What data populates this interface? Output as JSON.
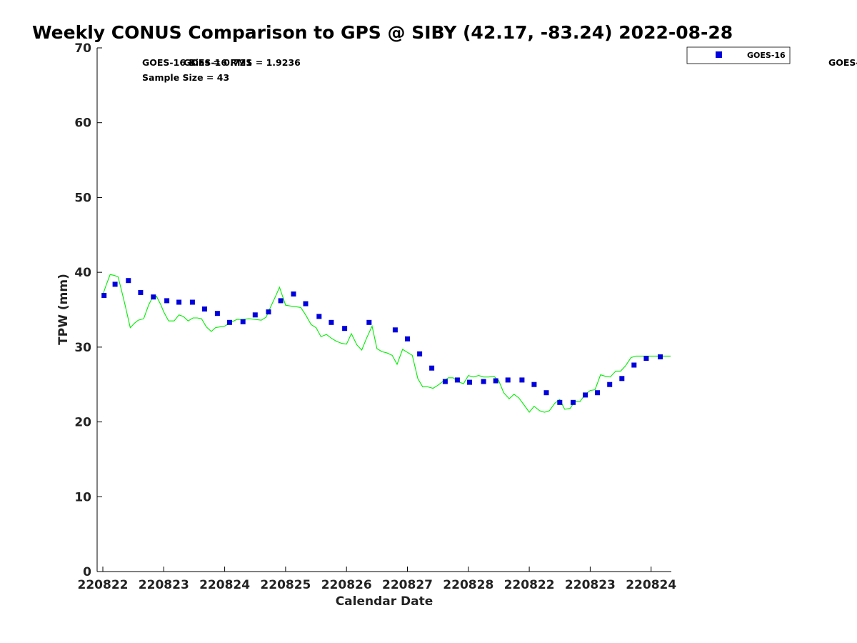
{
  "chart_data": {
    "type": "scatter",
    "title": "Weekly CONUS Comparison to GPS @ SIBY (42.17, -83.24) 2022-08-28",
    "xlabel": "Calendar Date",
    "ylabel": "TPW (mm)",
    "ylim": [
      0,
      70
    ],
    "yticks": [
      0,
      10,
      20,
      30,
      40,
      50,
      60,
      70
    ],
    "xlim": [
      0,
      9.3
    ],
    "xticks": [
      {
        "pos": 0,
        "label": "220822"
      },
      {
        "pos": 1,
        "label": "220823"
      },
      {
        "pos": 2,
        "label": "220824"
      },
      {
        "pos": 3,
        "label": "220825"
      },
      {
        "pos": 4,
        "label": "220826"
      },
      {
        "pos": 5,
        "label": "220827"
      },
      {
        "pos": 6,
        "label": "220828"
      },
      {
        "pos": 7,
        "label": "220822"
      },
      {
        "pos": 8,
        "label": "220823"
      },
      {
        "pos": 9,
        "label": "220824"
      }
    ],
    "annotations": {
      "rmse_overlap": "GOES-16 Bias = 0.721",
      "rmse_overlap_b": "GOES-16 RMS = 1.9236",
      "sample_size": "Sample Size = 43",
      "clipped_right": "GOES-"
    },
    "legend": {
      "position": "top-right",
      "entries": [
        "GOES-16"
      ]
    },
    "series": [
      {
        "name": "GOES-16",
        "marker": "square",
        "color": "#0000dd",
        "x": [
          0.02,
          0.2,
          0.42,
          0.62,
          0.83,
          1.05,
          1.25,
          1.47,
          1.67,
          1.88,
          2.08,
          2.3,
          2.5,
          2.72,
          2.92,
          3.13,
          3.33,
          3.55,
          3.75,
          3.97,
          4.37,
          4.8,
          5.0,
          5.2,
          5.4,
          5.62,
          5.82,
          6.02,
          6.25,
          6.45,
          6.65,
          6.88,
          7.08,
          7.28,
          7.5,
          7.72,
          7.92,
          8.12,
          8.32,
          8.52,
          8.72,
          8.92,
          9.15
        ],
        "y": [
          36.9,
          38.4,
          38.9,
          37.3,
          36.7,
          36.2,
          36.0,
          36.0,
          35.1,
          34.5,
          33.3,
          33.4,
          34.3,
          34.7,
          36.2,
          37.1,
          35.8,
          34.1,
          33.3,
          32.5,
          33.3,
          32.3,
          31.1,
          29.1,
          27.2,
          25.4,
          25.6,
          25.3,
          25.4,
          25.5,
          25.6,
          25.6,
          25.0,
          23.9,
          22.6,
          22.6,
          23.6,
          23.9,
          25.0,
          25.8,
          27.6,
          28.5,
          28.7
        ]
      },
      {
        "name": "",
        "type": "line",
        "color": "#00ee00",
        "x": [
          0.0,
          0.05,
          0.12,
          0.18,
          0.25,
          0.3,
          0.36,
          0.45,
          0.52,
          0.58,
          0.67,
          0.75,
          0.8,
          0.88,
          0.95,
          1.0,
          1.08,
          1.17,
          1.25,
          1.32,
          1.4,
          1.48,
          1.55,
          1.62,
          1.7,
          1.78,
          1.85,
          1.92,
          2.0,
          2.1,
          2.2,
          2.3,
          2.4,
          2.5,
          2.6,
          2.68,
          2.75,
          2.83,
          2.9,
          3.0,
          3.08,
          3.17,
          3.25,
          3.33,
          3.42,
          3.5,
          3.58,
          3.67,
          3.75,
          3.83,
          3.92,
          4.0,
          4.08,
          4.17,
          4.25,
          4.33,
          4.42,
          4.5,
          4.58,
          4.67,
          4.75,
          4.83,
          4.92,
          5.0,
          5.08,
          5.17,
          5.25,
          5.33,
          5.42,
          5.5,
          5.58,
          5.67,
          5.75,
          5.83,
          5.92,
          6.0,
          6.08,
          6.17,
          6.25,
          6.33,
          6.42,
          6.5,
          6.58,
          6.67,
          6.75,
          6.83,
          6.92,
          7.0,
          7.08,
          7.17,
          7.25,
          7.33,
          7.42,
          7.5,
          7.58,
          7.67,
          7.75,
          7.83,
          7.92,
          8.0,
          8.08,
          8.17,
          8.25,
          8.33,
          8.42,
          8.5,
          8.58,
          8.67,
          8.75,
          8.83,
          8.92,
          9.0,
          9.08,
          9.17,
          9.25,
          9.32
        ],
        "y": [
          37.0,
          38.2,
          39.7,
          39.6,
          39.4,
          37.8,
          35.8,
          32.6,
          33.2,
          33.6,
          33.8,
          35.6,
          36.4,
          36.8,
          35.7,
          34.7,
          33.5,
          33.5,
          34.3,
          34.1,
          33.5,
          33.9,
          33.9,
          33.8,
          32.7,
          32.1,
          32.6,
          32.7,
          32.8,
          33.3,
          33.7,
          33.7,
          33.8,
          33.7,
          33.6,
          34.0,
          35.3,
          36.7,
          38.0,
          35.6,
          35.5,
          35.4,
          35.3,
          34.3,
          33.0,
          32.6,
          31.4,
          31.7,
          31.2,
          30.8,
          30.5,
          30.4,
          31.8,
          30.3,
          29.6,
          31.2,
          32.8,
          29.8,
          29.4,
          29.2,
          28.9,
          27.7,
          29.7,
          29.3,
          28.9,
          25.8,
          24.7,
          24.7,
          24.5,
          24.9,
          25.4,
          25.9,
          25.9,
          25.4,
          25.1,
          26.2,
          26.0,
          26.2,
          26.0,
          26.0,
          26.1,
          25.5,
          23.9,
          23.1,
          23.7,
          23.2,
          22.2,
          21.3,
          22.1,
          21.5,
          21.3,
          21.5,
          22.5,
          23.0,
          21.7,
          21.8,
          22.8,
          22.7,
          23.7,
          24.2,
          24.3,
          26.3,
          26.1,
          26.0,
          26.8,
          26.8,
          27.5,
          28.6,
          28.8,
          28.8,
          28.8,
          28.8,
          28.8,
          28.8,
          28.8,
          28.8
        ]
      }
    ]
  }
}
